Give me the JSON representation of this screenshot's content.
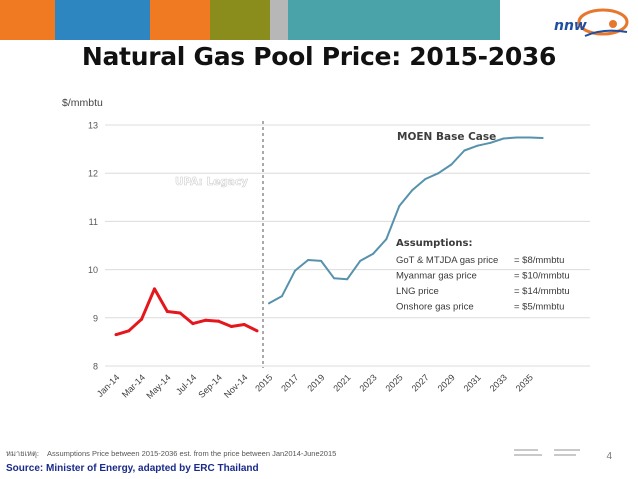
{
  "slide": {
    "title": "Natural Gas Pool Price:  2015-2036",
    "logo_text": "nnw",
    "note_prefix": "หมายเหตุ:",
    "note": "Assumptions Price between 2015-2036  est. from the price between Jan2014-June2015",
    "source": "Source: Minister of Energy, adapted by ERC Thailand",
    "page_number": "4"
  },
  "colors": {
    "orange": "#f07a22",
    "blue": "#2e86c1",
    "olive": "#8a8c1c",
    "teal": "#4aa3a8",
    "gray": "#b7b7b7",
    "legacy_line": "#e3171c",
    "base_case_line": "#5792ad",
    "source_text": "#1a2a8a"
  },
  "chart_data": {
    "type": "line",
    "ylabel": "$/mmbtu",
    "ylim": [
      8,
      13
    ],
    "yticks": [
      "8",
      "9",
      "10",
      "11",
      "12",
      "13"
    ],
    "grid": true,
    "x_tick_labels": [
      "Jan-14",
      "Mar-14",
      "May-14",
      "Jul-14",
      "Sep-14",
      "Nov-14",
      "2015",
      "2017",
      "2019",
      "2021",
      "2023",
      "2025",
      "2027",
      "2029",
      "2031",
      "2033",
      "2035"
    ],
    "series": [
      {
        "name": "UPA: Legacy",
        "x": [
          "Jan-14",
          "Feb-14",
          "Mar-14",
          "Apr-14",
          "May-14",
          "Jun-14",
          "Jul-14",
          "Aug-14",
          "Sep-14",
          "Oct-14",
          "Nov-14",
          "Dec-14"
        ],
        "values": [
          8.65,
          8.73,
          8.97,
          9.6,
          9.13,
          9.1,
          8.88,
          8.95,
          8.93,
          8.82,
          8.86,
          8.73
        ]
      },
      {
        "name": "MOEN Base Case",
        "x": [
          "2015",
          "2016",
          "2017",
          "2018",
          "2019",
          "2020",
          "2021",
          "2022",
          "2023",
          "2024",
          "2025",
          "2026",
          "2027",
          "2028",
          "2029",
          "2030",
          "2031",
          "2032",
          "2033",
          "2034",
          "2035",
          "2036"
        ],
        "values": [
          9.3,
          9.45,
          9.98,
          10.2,
          10.18,
          9.82,
          9.8,
          10.18,
          10.33,
          10.63,
          11.32,
          11.65,
          11.88,
          12.0,
          12.18,
          12.47,
          12.57,
          12.63,
          12.72,
          12.74,
          12.74,
          12.73
        ]
      }
    ],
    "annotations": {
      "legacy_label": "UPA: Legacy",
      "base_label": "MOEN Base Case",
      "assumptions_title": "Assumptions:",
      "assumptions": [
        {
          "item": "GoT & MTJDA gas price",
          "value": "= $8/mmbtu"
        },
        {
          "item": "Myanmar gas price",
          "value": "= $10/mmbtu"
        },
        {
          "item": "LNG price",
          "value": "= $14/mmbtu"
        },
        {
          "item": "Onshore gas price",
          "value": "= $5/mmbtu"
        }
      ]
    }
  }
}
